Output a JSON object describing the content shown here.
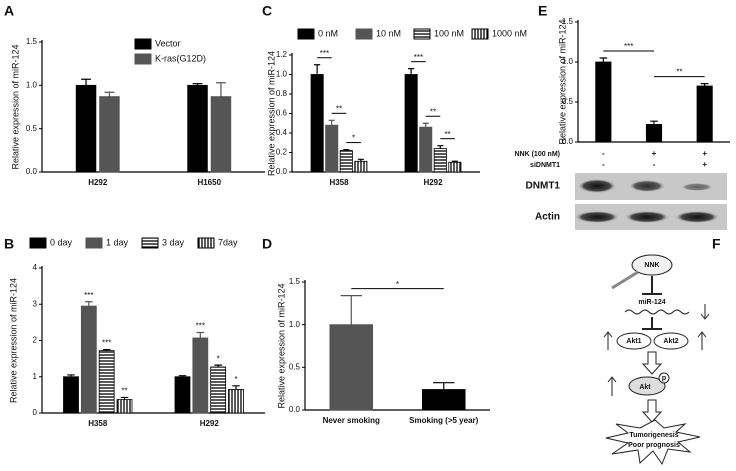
{
  "chart_data": [
    {
      "type": "bar",
      "panel": "A",
      "y_label": "Relative expression of miR-124",
      "categories": [
        "H292",
        "H1650"
      ],
      "series": [
        {
          "name": "Vector",
          "color": "#000000",
          "values": [
            1.0,
            1.0
          ],
          "errors": [
            0.07,
            0.02
          ]
        },
        {
          "name": "K-ras(G12D)",
          "color": "#555555",
          "values": [
            0.87,
            0.87
          ],
          "errors": [
            0.05,
            0.16
          ]
        }
      ],
      "ylim": [
        0,
        1.5
      ],
      "yticks": [
        {
          "value": 0,
          "label": "0.0"
        },
        0.5,
        {
          "value": 1,
          "label": "1.0"
        },
        1.5
      ],
      "legend": "upper right"
    },
    {
      "type": "bar",
      "panel": "B",
      "y_label": "Relative expression of miR-124",
      "categories": [
        "H358",
        "H292"
      ],
      "series": [
        {
          "name": "0 day",
          "color": "#000000",
          "values": [
            1.0,
            1.0
          ],
          "errors": [
            0.05,
            0.03
          ]
        },
        {
          "name": "1 day",
          "color": "#555555",
          "values": [
            2.95,
            2.07
          ],
          "errors": [
            0.12,
            0.15
          ],
          "annotations": [
            "***",
            "***"
          ]
        },
        {
          "name": "3 day",
          "color": "#000000",
          "pattern": "horizontal",
          "values": [
            1.72,
            1.27
          ],
          "errors": [
            0.03,
            0.05
          ],
          "annotations": [
            "***",
            "*"
          ]
        },
        {
          "name": "7day",
          "color": "#000000",
          "pattern": "vertical",
          "values": [
            0.37,
            0.65
          ],
          "errors": [
            0.06,
            0.1
          ],
          "annotations": [
            "**",
            "*"
          ]
        }
      ],
      "ylim": [
        0,
        4
      ],
      "yticks": [
        0,
        1,
        2,
        3,
        4
      ],
      "legend": "top"
    },
    {
      "type": "bar",
      "panel": "C",
      "y_label": "Relative expression of miR-124",
      "categories": [
        "H358",
        "H292"
      ],
      "series": [
        {
          "name": "0 nM",
          "color": "#000000",
          "values": [
            1.0,
            1.0
          ],
          "errors": [
            0.1,
            0.06
          ]
        },
        {
          "name": "10 nM",
          "color": "#555555",
          "values": [
            0.48,
            0.46
          ],
          "errors": [
            0.05,
            0.04
          ]
        },
        {
          "name": "100 nM",
          "color": "#000000",
          "pattern": "horizontal",
          "values": [
            0.22,
            0.24
          ],
          "errors": [
            0.01,
            0.03
          ]
        },
        {
          "name": "1000 nM",
          "color": "#000000",
          "pattern": "vertical",
          "values": [
            0.11,
            0.1
          ],
          "errors": [
            0.02,
            0.01
          ]
        }
      ],
      "brackets": [
        [
          "***",
          "**",
          "*"
        ],
        [
          "***",
          "**",
          "**"
        ]
      ],
      "ylim": [
        0,
        1.2
      ],
      "yticks": [
        {
          "value": 0,
          "label": "0.0"
        },
        0.2,
        0.4,
        0.6,
        0.8,
        {
          "value": 1,
          "label": "1.0"
        },
        1.2
      ],
      "legend": "top"
    },
    {
      "type": "bar",
      "panel": "D",
      "y_label": "Relative expression of miR-124",
      "categories": [
        "Never smoking",
        "Smoking (>5 year)"
      ],
      "values": [
        1.0,
        0.24
      ],
      "errors": [
        0.34,
        0.08
      ],
      "colors": [
        "#555555",
        "#000000"
      ],
      "brackets": [
        "*"
      ],
      "ylim": [
        0,
        1.5
      ],
      "yticks": [
        {
          "value": 0,
          "label": "0.0"
        },
        0.5,
        {
          "value": 1,
          "label": "1.0"
        },
        1.5
      ]
    },
    {
      "type": "bar",
      "panel": "E",
      "y_label": "Relative expression of miR-124",
      "categories": [
        null,
        null,
        null
      ],
      "values": [
        1.0,
        0.22,
        0.7
      ],
      "errors": [
        0.05,
        0.04,
        0.03
      ],
      "color": "#000000",
      "brackets": [
        "***",
        "**"
      ],
      "conditions": [
        {
          "label": "NNK (100 nM)",
          "signs": [
            "-",
            "+",
            "+"
          ]
        },
        {
          "label": "siDNMT1",
          "signs": [
            "-",
            "-",
            "+"
          ]
        }
      ],
      "blot_labels": [
        "DNMT1",
        "Actin"
      ],
      "ylim": [
        0,
        1.5
      ],
      "yticks": [
        {
          "value": 0,
          "label": "0.0"
        },
        0.5,
        {
          "value": 1,
          "label": "1.0"
        },
        1.5
      ]
    }
  ],
  "diagram": {
    "panel": "F",
    "labels": [
      "NNK",
      "miR-124",
      "Akt1",
      "Akt2",
      "Akt",
      "p",
      "Tumorigenesis",
      "Poor prognosis"
    ]
  }
}
